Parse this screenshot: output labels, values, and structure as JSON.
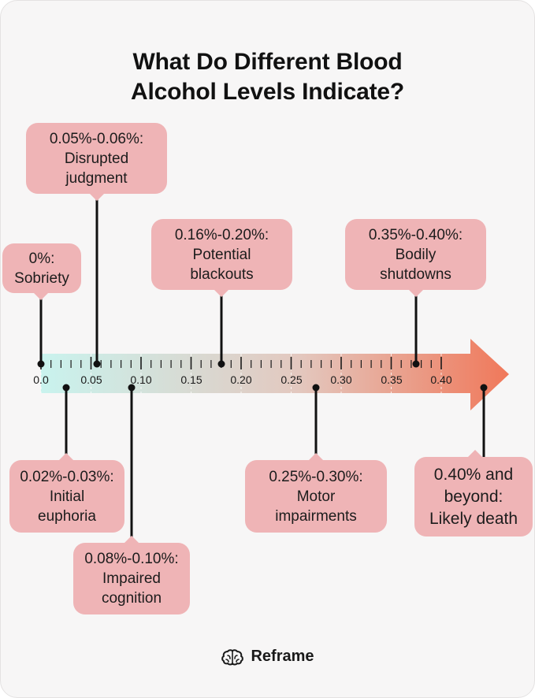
{
  "title": {
    "line1": "What Do Different Blood",
    "line2": "Alcohol Levels Indicate?"
  },
  "axis": {
    "tick_labels": [
      "0.0",
      "0.05",
      "0.10",
      "0.15",
      "0.20",
      "0.25",
      "0.30",
      "0.35",
      "0.40"
    ],
    "min": 0.0,
    "max": 0.4,
    "gradient_start": "#c9f3ee",
    "gradient_end": "#f0785a"
  },
  "markers": [
    {
      "id": "sobriety",
      "value": 0.0,
      "side": "above",
      "lines": [
        "0%:",
        "Sobriety"
      ]
    },
    {
      "id": "euphoria",
      "value": 0.025,
      "side": "below",
      "lines": [
        "0.02%-0.03%:",
        "Initial",
        "euphoria"
      ]
    },
    {
      "id": "judgment",
      "value": 0.055,
      "side": "above",
      "lines": [
        "0.05%-0.06%:",
        "Disrupted",
        "judgment"
      ]
    },
    {
      "id": "cognition",
      "value": 0.09,
      "side": "below",
      "lines": [
        "0.08%-0.10%:",
        "Impaired",
        "cognition"
      ]
    },
    {
      "id": "blackouts",
      "value": 0.18,
      "side": "above",
      "lines": [
        "0.16%-0.20%:",
        "Potential",
        "blackouts"
      ]
    },
    {
      "id": "motor",
      "value": 0.275,
      "side": "below",
      "lines": [
        "0.25%-0.30%:",
        "Motor",
        "impairments"
      ]
    },
    {
      "id": "shutdown",
      "value": 0.375,
      "side": "above",
      "lines": [
        "0.35%-0.40%:",
        "Bodily",
        "shutdowns"
      ]
    },
    {
      "id": "death",
      "value": 0.45,
      "side": "below",
      "lines": [
        "0.40% and",
        "beyond:",
        "Likely death"
      ]
    }
  ],
  "colors": {
    "callout": "#efb4b6",
    "connector": "#111111"
  },
  "footer": {
    "icon": "brain-icon",
    "brand": "Reframe"
  }
}
